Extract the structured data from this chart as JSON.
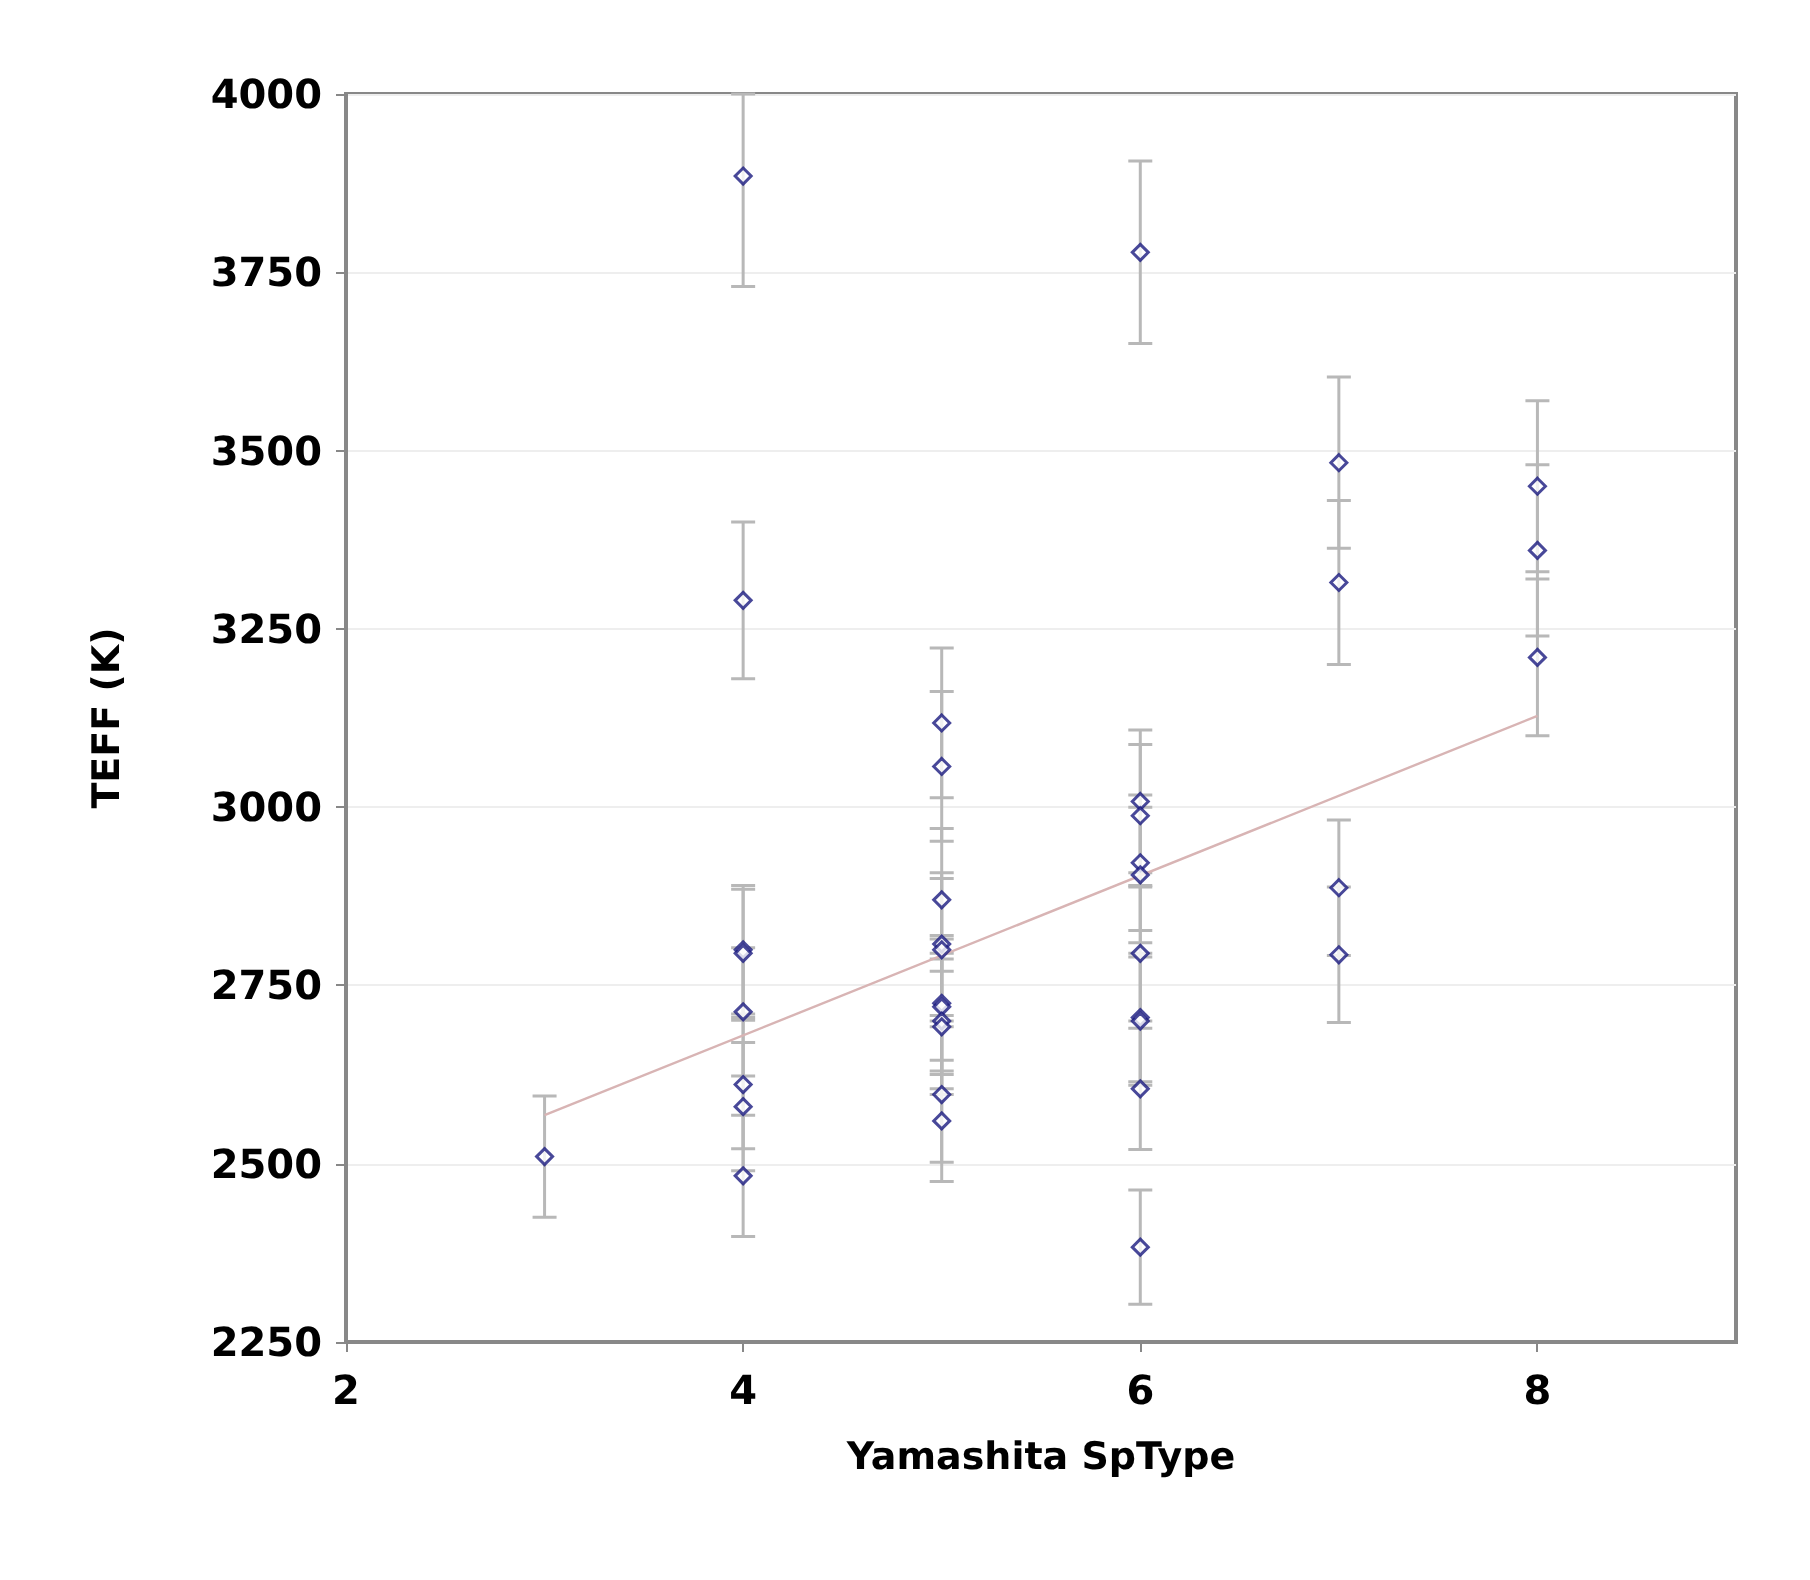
{
  "chart_data": {
    "type": "scatter",
    "xlabel": "Yamashita SpType",
    "ylabel": "TEFF (K)",
    "xlim": [
      2,
      9
    ],
    "xticks": [
      2,
      4,
      6,
      8
    ],
    "ylim": [
      2250,
      4000
    ],
    "yticks": [
      2250,
      2500,
      2750,
      3000,
      3250,
      3500,
      3750,
      4000
    ],
    "grid": "y",
    "series": [
      {
        "marker": "diamond",
        "color": "#1a1a80",
        "x": [
          3,
          4,
          4,
          4,
          4,
          4,
          4,
          4,
          4,
          5,
          5,
          5,
          5,
          5,
          5,
          5,
          5,
          5,
          5,
          5,
          6,
          6,
          6,
          6,
          6,
          6,
          6,
          6,
          6,
          6,
          7,
          7,
          7,
          7,
          8,
          8,
          8
        ],
        "values": [
          2510,
          3885,
          3290,
          2800,
          2795,
          2713,
          2611,
          2580,
          2483,
          3118,
          3057,
          2870,
          2808,
          2800,
          2725,
          2720,
          2700,
          2692,
          2597,
          2560,
          3778,
          3008,
          2988,
          2922,
          2905,
          2795,
          2705,
          2700,
          2605,
          2383,
          3483,
          3315,
          2887,
          2793,
          3450,
          3360,
          3210
        ],
        "errors": [
          85,
          [
            3730,
            4000
          ],
          110,
          90,
          90,
          90,
          90,
          90,
          85,
          105,
          105,
          100,
          100,
          100,
          95,
          95,
          95,
          95,
          95,
          85,
          128,
          100,
          100,
          95,
          95,
          95,
          90,
          90,
          85,
          80,
          120,
          115,
          95,
          95,
          120,
          120,
          110
        ]
      },
      {
        "type": "line",
        "color": "#d8b4b4",
        "x": [
          3,
          8
        ],
        "values": [
          2568,
          3128
        ]
      }
    ]
  }
}
